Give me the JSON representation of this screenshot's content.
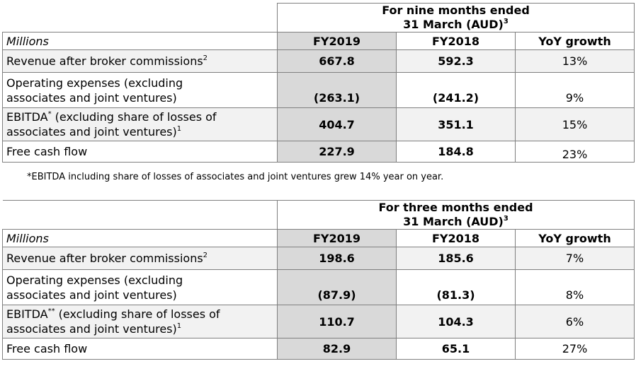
{
  "tables": [
    {
      "period_line1": "For nine months ended",
      "period_line2": "31 March (AUD)",
      "period_sup": "3",
      "units_label": "Millions",
      "col_fy2019": "FY2019",
      "col_fy2018": "FY2018",
      "col_yoy": "YoY growth",
      "rows": [
        {
          "label": "Revenue after broker commissions",
          "sup": "2",
          "fy2019": "667.8",
          "fy2018": "592.3",
          "yoy": "13%"
        },
        {
          "label_line1": "Operating expenses (excluding",
          "label_line2": "associates and joint ventures)",
          "fy2019": "(263.1)",
          "fy2018": "(241.2)",
          "yoy": "9%"
        },
        {
          "label_prefix": "EBITDA",
          "prefix_sup": "*",
          "label_line1_rest": " (excluding share of losses of",
          "label_line2": "associates and joint ventures)",
          "sup": "1",
          "fy2019": "404.7",
          "fy2018": "351.1",
          "yoy": "15%"
        },
        {
          "label": "Free cash flow",
          "fy2019": "227.9",
          "fy2018": "184.8",
          "yoy": "23%"
        }
      ]
    },
    {
      "period_line1": "For three months ended",
      "period_line2": "31 March (AUD)",
      "period_sup": "3",
      "units_label": "Millions",
      "col_fy2019": "FY2019",
      "col_fy2018": "FY2018",
      "col_yoy": "YoY growth",
      "rows": [
        {
          "label": "Revenue after broker commissions",
          "sup": "2",
          "fy2019": "198.6",
          "fy2018": "185.6",
          "yoy": "7%"
        },
        {
          "label_line1": "Operating expenses (excluding",
          "label_line2": "associates and joint ventures)",
          "fy2019": "(87.9)",
          "fy2018": "(81.3)",
          "yoy": "8%"
        },
        {
          "label_prefix": "EBITDA",
          "prefix_sup": "**",
          "label_line1_rest": " (excluding share of losses of",
          "label_line2": "associates and joint ventures)",
          "sup": "1",
          "fy2019": "110.7",
          "fy2018": "104.3",
          "yoy": "6%"
        },
        {
          "label": "Free cash flow",
          "fy2019": "82.9",
          "fy2018": "65.1",
          "yoy": "27%"
        }
      ]
    }
  ],
  "footnote": "*EBITDA including share of losses of associates and joint ventures grew 14% year on year."
}
